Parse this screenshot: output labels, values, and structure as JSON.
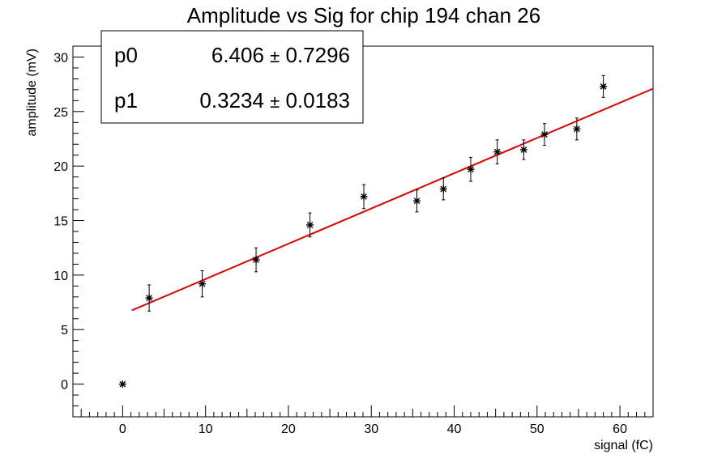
{
  "chart_data": {
    "type": "scatter",
    "title": "Amplitude vs Sig for chip 194 chan 26",
    "xlabel": "signal (fC)",
    "ylabel": "amplitude (mV)",
    "xlim": [
      -6,
      64
    ],
    "ylim": [
      -3,
      31
    ],
    "x_ticks": [
      0,
      10,
      20,
      30,
      40,
      50,
      60
    ],
    "y_ticks": [
      0,
      5,
      10,
      15,
      20,
      25,
      30
    ],
    "grid": false,
    "legend": "none",
    "series": [
      {
        "marker": "asterisk",
        "color": "#000000",
        "points": [
          {
            "x": 0.0,
            "y": 0.0,
            "err": 0.0
          },
          {
            "x": 3.2,
            "y": 7.9,
            "err": 1.2
          },
          {
            "x": 9.6,
            "y": 9.2,
            "err": 1.2
          },
          {
            "x": 16.1,
            "y": 11.4,
            "err": 1.1
          },
          {
            "x": 22.6,
            "y": 14.6,
            "err": 1.1
          },
          {
            "x": 29.1,
            "y": 17.2,
            "err": 1.1
          },
          {
            "x": 35.5,
            "y": 16.8,
            "err": 1.0
          },
          {
            "x": 38.7,
            "y": 17.9,
            "err": 1.0
          },
          {
            "x": 42.0,
            "y": 19.7,
            "err": 1.1
          },
          {
            "x": 45.2,
            "y": 21.3,
            "err": 1.1
          },
          {
            "x": 48.4,
            "y": 21.5,
            "err": 0.9
          },
          {
            "x": 50.9,
            "y": 22.9,
            "err": 1.0
          },
          {
            "x": 54.8,
            "y": 23.4,
            "err": 1.0
          },
          {
            "x": 58.0,
            "y": 27.3,
            "err": 1.0
          }
        ]
      }
    ],
    "fit": {
      "color": "#e00000",
      "x_range": [
        1.1,
        64
      ],
      "p0": 6.406,
      "p1": 0.3234
    },
    "stats_box": {
      "placement": "top-left",
      "rows": [
        {
          "label": "p0",
          "value": "6.406",
          "error": "0.7296"
        },
        {
          "label": "p1",
          "value": "0.3234",
          "error": "0.0183"
        }
      ]
    }
  }
}
